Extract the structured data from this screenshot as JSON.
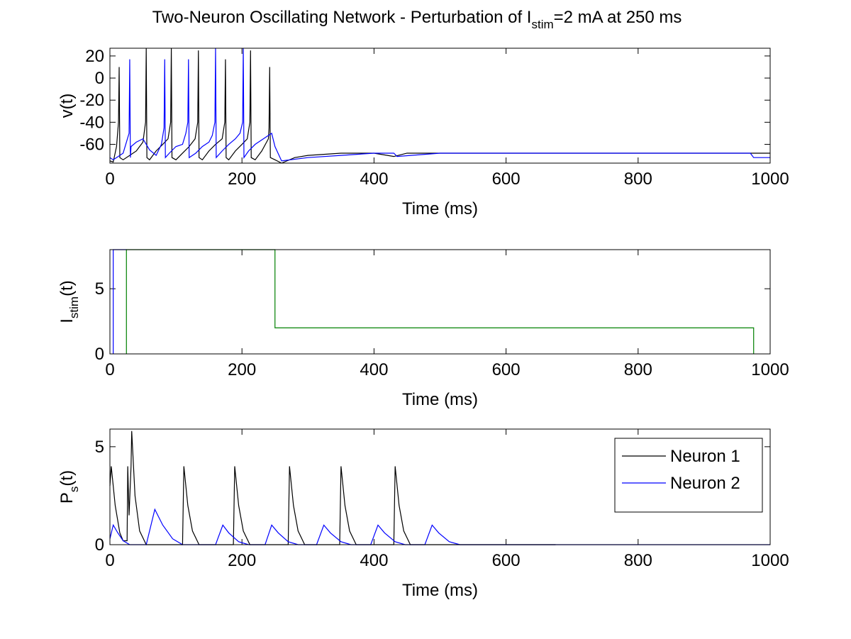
{
  "title": {
    "text": "Two-Neuron Oscillating Network - Perturbation of I",
    "sub": "stim",
    "suffix": "=2 mA at 250 ms"
  },
  "chart_data": [
    {
      "type": "line",
      "ylabel": "v(t)",
      "xlabel": "Time (ms)",
      "xlim": [
        0,
        1000
      ],
      "xticks": [
        0,
        200,
        400,
        600,
        800,
        1000
      ],
      "ylim": [
        -77,
        27
      ],
      "yticks": [
        -60,
        -40,
        -20,
        0,
        20
      ],
      "series": [
        {
          "color": "#000000",
          "x": [
            0,
            5,
            10,
            13,
            14,
            15,
            20,
            30,
            40,
            50,
            54,
            55,
            56,
            60,
            70,
            80,
            88,
            92,
            93,
            94,
            100,
            110,
            120,
            129,
            133,
            134,
            135,
            140,
            150,
            160,
            170,
            174,
            175,
            176,
            180,
            190,
            200,
            208,
            212,
            213,
            214,
            220,
            230,
            240,
            241,
            242,
            243,
            250,
            260,
            280,
            300,
            350,
            400,
            430,
            450,
            500,
            600,
            1000
          ],
          "values": [
            -75,
            -76,
            -62,
            -40,
            10,
            -72,
            -74,
            -70,
            -66,
            -58,
            -40,
            27,
            -72,
            -74,
            -66,
            -60,
            -55,
            -40,
            27,
            -72,
            -74,
            -68,
            -62,
            -55,
            -40,
            25,
            -72,
            -74,
            -66,
            -60,
            -55,
            -40,
            17,
            -72,
            -74,
            -66,
            -60,
            -55,
            -40,
            25,
            -72,
            -74,
            -66,
            -55,
            -45,
            10,
            -72,
            -74,
            -77,
            -72,
            -70,
            -68,
            -68,
            -71,
            -68,
            -68,
            -68,
            -68
          ]
        },
        {
          "color": "#0000ff",
          "x": [
            0,
            5,
            10,
            20,
            29,
            30,
            31,
            32,
            40,
            50,
            60,
            70,
            78,
            82,
            83,
            84,
            90,
            100,
            110,
            115,
            118,
            119,
            120,
            130,
            140,
            150,
            155,
            159,
            160,
            161,
            170,
            180,
            190,
            197,
            201,
            202,
            203,
            210,
            220,
            230,
            240,
            245,
            250,
            260,
            300,
            350,
            400,
            430,
            435,
            500,
            600,
            970,
            975,
            1000
          ],
          "values": [
            -72,
            -74,
            -72,
            -68,
            -50,
            17,
            -72,
            -62,
            -58,
            -55,
            -65,
            -70,
            -60,
            -45,
            17,
            -72,
            -68,
            -62,
            -60,
            -50,
            -40,
            17,
            -72,
            -68,
            -62,
            -58,
            -52,
            -40,
            27,
            -72,
            -66,
            -60,
            -55,
            -50,
            -40,
            27,
            -72,
            -66,
            -60,
            -56,
            -52,
            -50,
            -62,
            -75,
            -72,
            -70,
            -68,
            -68,
            -71,
            -68,
            -68,
            -68,
            -72,
            -72
          ]
        }
      ]
    },
    {
      "type": "line",
      "ylabel": {
        "text": "I",
        "sub": "stim",
        "suffix": "(t)"
      },
      "xlabel": "Time (ms)",
      "xlim": [
        0,
        1000
      ],
      "xticks": [
        0,
        200,
        400,
        600,
        800,
        1000
      ],
      "ylim": [
        0,
        8
      ],
      "yticks": [
        0,
        5
      ],
      "series": [
        {
          "color": "#0000ff",
          "x": [
            5,
            5,
            25
          ],
          "values": [
            0,
            8,
            8
          ]
        },
        {
          "color": "#008000",
          "x": [
            25,
            25,
            250,
            250,
            975,
            975
          ],
          "values": [
            0,
            8,
            8,
            2,
            2,
            0
          ]
        }
      ]
    },
    {
      "type": "line",
      "ylabel": {
        "text": "P",
        "sub": "s",
        "suffix": "(t)"
      },
      "xlabel": "Time (ms)",
      "xlim": [
        0,
        1000
      ],
      "xticks": [
        0,
        200,
        400,
        600,
        800,
        1000
      ],
      "ylim": [
        0,
        5.9
      ],
      "yticks": [
        0,
        5
      ],
      "legend": "upper right",
      "series": [
        {
          "name": "Neuron 1",
          "color": "#000000",
          "x": [
            0,
            2,
            8,
            15,
            20,
            26,
            27,
            29,
            32,
            33,
            38,
            45,
            55,
            110,
            111,
            112,
            118,
            125,
            135,
            187,
            188,
            189,
            195,
            202,
            212,
            270,
            271,
            272,
            278,
            285,
            295,
            348,
            349,
            350,
            356,
            363,
            373,
            430,
            431,
            432,
            438,
            445,
            455,
            675
          ],
          "values": [
            3,
            4,
            2,
            0.6,
            0.2,
            0.2,
            4,
            1.5,
            4,
            5.8,
            2.5,
            0.7,
            0,
            0,
            2,
            4,
            2,
            0.7,
            0,
            0,
            2,
            4,
            2,
            0.7,
            0,
            0,
            2,
            4,
            2,
            0.7,
            0,
            0,
            2,
            4,
            2,
            0.7,
            0,
            0,
            2,
            4,
            2,
            0.7,
            0,
            0
          ]
        },
        {
          "name": "Neuron 2",
          "color": "#0000ff",
          "x": [
            0,
            5,
            12,
            20,
            30,
            55,
            68,
            80,
            95,
            110,
            160,
            171,
            180,
            195,
            210,
            235,
            245,
            255,
            270,
            285,
            313,
            324,
            334,
            350,
            365,
            395,
            406,
            416,
            432,
            447,
            477,
            488,
            498,
            514,
            530,
            1000
          ],
          "values": [
            0.3,
            1,
            0.6,
            0.2,
            0,
            0,
            1.8,
            1,
            0.3,
            0,
            0,
            1,
            0.6,
            0.15,
            0,
            0,
            1,
            0.6,
            0.15,
            0,
            0,
            1,
            0.6,
            0.15,
            0,
            0,
            1,
            0.6,
            0.15,
            0,
            0,
            1,
            0.6,
            0.15,
            0,
            0
          ]
        }
      ]
    }
  ]
}
